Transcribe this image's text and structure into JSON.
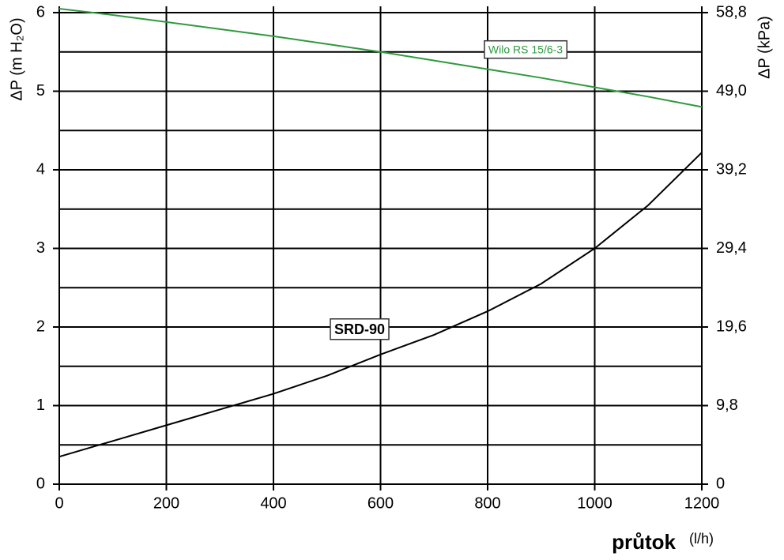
{
  "chart_data": {
    "type": "line",
    "y_label": "ΔP (m H₂O)",
    "y2_label": "ΔP (kPa)",
    "x_label": "průtok",
    "x_unit": "(l/h)",
    "x": [
      0,
      100,
      200,
      300,
      400,
      500,
      600,
      700,
      800,
      900,
      1000,
      1100,
      1200
    ],
    "series": [
      {
        "name": "Wilo RS 15/6-3",
        "color": "#2e9a3e",
        "values": [
          6.05,
          5.97,
          5.88,
          5.79,
          5.7,
          5.6,
          5.5,
          5.39,
          5.28,
          5.17,
          5.05,
          4.93,
          4.8
        ]
      },
      {
        "name": "SRD-90",
        "color": "#000000",
        "values": [
          0.35,
          0.55,
          0.75,
          0.95,
          1.15,
          1.38,
          1.65,
          1.9,
          2.2,
          2.55,
          3.0,
          3.55,
          4.22
        ]
      }
    ],
    "xlim": [
      0,
      1200
    ],
    "xticks": [
      0,
      200,
      400,
      600,
      800,
      1000,
      1200
    ],
    "ylim": [
      0,
      6.05
    ],
    "yticks": [
      0,
      1,
      2,
      3,
      4,
      5,
      6
    ],
    "minor_yticks": [
      0.5,
      1.5,
      2.5,
      3.5,
      4.5,
      5.5
    ],
    "y2lim": [
      0,
      59.29
    ],
    "y2ticks": [
      0,
      {
        "value": 9.8,
        "label": "9,8"
      },
      {
        "value": 19.6,
        "label": "19,6"
      },
      {
        "value": 29.4,
        "label": "29,4"
      },
      {
        "value": 39.2,
        "label": "39,2"
      },
      {
        "value": 49.0,
        "label": "49,0"
      },
      {
        "value": 58.8,
        "label": "58,8"
      }
    ],
    "grid": true
  }
}
